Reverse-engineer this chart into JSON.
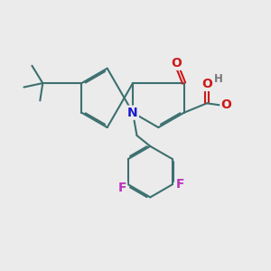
{
  "bg_color": "#ebebeb",
  "bond_color": "#3d7070",
  "bond_width": 1.5,
  "dbo": 0.055,
  "atom_colors": {
    "N": "#1a1acc",
    "O": "#cc1a1a",
    "F": "#bb33bb",
    "H": "#777777"
  },
  "fs_large": 10,
  "fs_small": 8.5
}
